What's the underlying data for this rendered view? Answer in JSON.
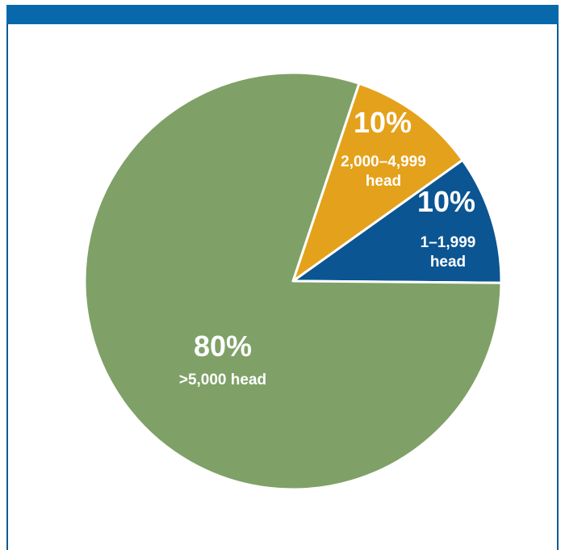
{
  "chart_data": {
    "type": "pie",
    "start_angle_deg": -0.5,
    "direction": "counterclockwise",
    "slices": [
      {
        "percent_label": "10%",
        "category_lines": [
          "1–1,999",
          "head"
        ],
        "value": 10,
        "color": "#0b5592"
      },
      {
        "percent_label": "10%",
        "category_lines": [
          "2,000–4,999",
          "head"
        ],
        "value": 10,
        "color": "#e4a11b"
      },
      {
        "percent_label": "80%",
        "category_lines": [
          ">5,000 head"
        ],
        "value": 80,
        "color": "#7fa167"
      }
    ]
  }
}
